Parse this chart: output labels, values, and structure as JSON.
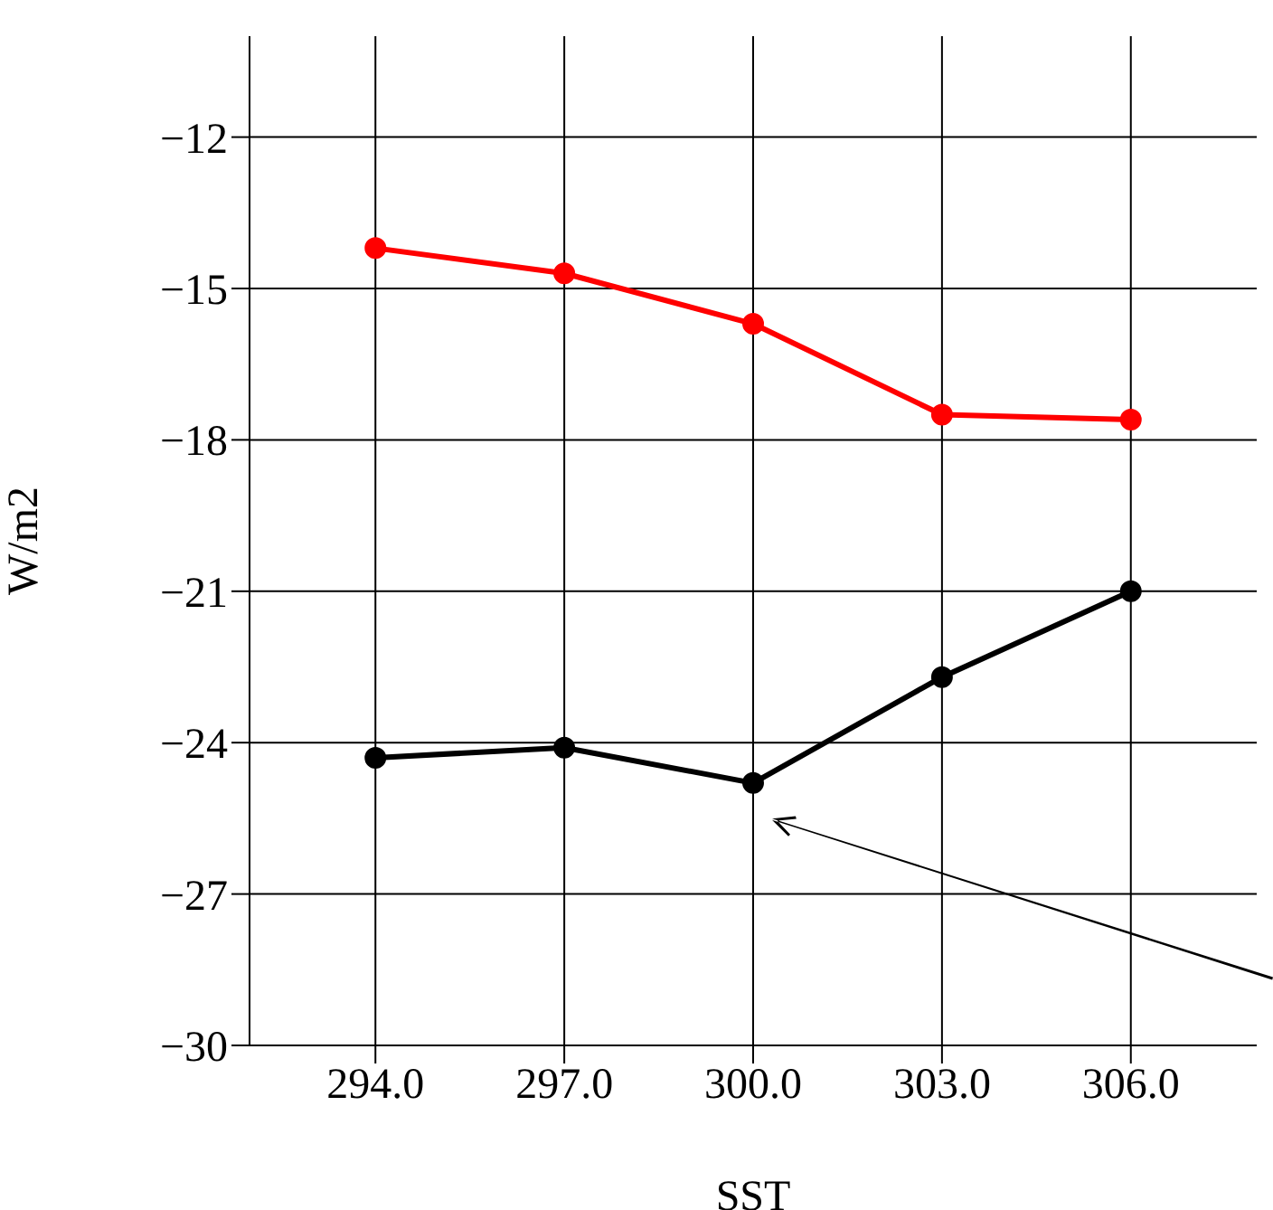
{
  "chart_data": {
    "type": "line",
    "xlabel": "SST",
    "ylabel": "W/m2",
    "x": [
      294,
      297,
      300,
      303,
      306
    ],
    "series": [
      {
        "color": "#ff0000",
        "values": [
          -14.2,
          -14.7,
          -15.7,
          -17.5,
          -17.6
        ]
      },
      {
        "color": "#000000",
        "values": [
          -24.3,
          -24.1,
          -24.8,
          -22.7,
          -21.0
        ]
      }
    ],
    "xlim": [
      292,
      308
    ],
    "xticks": [
      {
        "value": 294,
        "label": "294.0"
      },
      {
        "value": 297,
        "label": "297.0"
      },
      {
        "value": 300,
        "label": "300.0"
      },
      {
        "value": 303,
        "label": "303.0"
      },
      {
        "value": 306,
        "label": "306.0"
      }
    ],
    "ylim": [
      -30,
      -10
    ],
    "yticks": [
      -30,
      -27,
      -24,
      -21,
      -18,
      -15,
      -12
    ],
    "grid": true,
    "marker": "circle",
    "line_style": "solid"
  }
}
